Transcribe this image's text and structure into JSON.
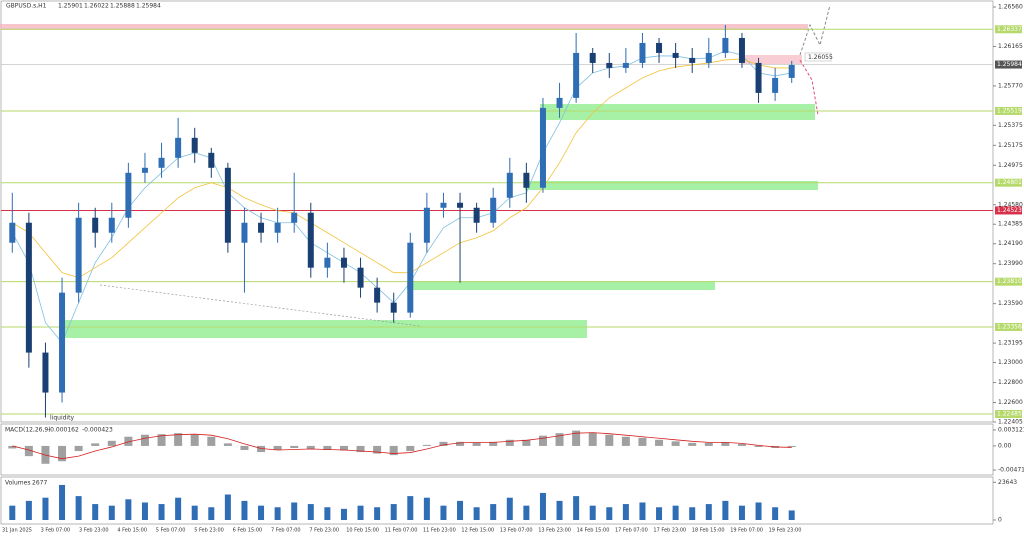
{
  "symbol": "GBPUSD.s,H1",
  "ohlc": [
    1.25901,
    1.26022,
    1.25888,
    1.25984
  ],
  "annotations": {
    "liquidity": "liquidity",
    "target": 1.26055
  },
  "chart_data": [
    {
      "type": "candlestick",
      "up_color": "#2f6db5",
      "down_color": "#1a3f73",
      "open": [
        1.242,
        1.244,
        1.231,
        1.227,
        1.237,
        1.2445,
        1.243,
        1.2445,
        1.249,
        1.2495,
        1.2505,
        1.2525,
        1.251,
        1.2495,
        1.242,
        1.244,
        1.243,
        1.244,
        1.245,
        1.2395,
        1.2405,
        1.2395,
        1.2375,
        1.236,
        1.235,
        1.242,
        1.2455,
        1.246,
        1.2455,
        1.244,
        1.2465,
        1.249,
        1.2475,
        1.2555,
        1.2565,
        1.261,
        1.26,
        1.2595,
        1.26,
        1.262,
        1.261,
        1.2605,
        1.26,
        1.261,
        1.2625,
        1.26,
        1.257,
        1.2585
      ],
      "high": [
        1.247,
        1.245,
        1.232,
        1.2385,
        1.246,
        1.2455,
        1.246,
        1.25,
        1.251,
        1.252,
        1.2545,
        1.2535,
        1.2515,
        1.25,
        1.2455,
        1.245,
        1.2455,
        1.249,
        1.246,
        1.242,
        1.2415,
        1.2405,
        1.2385,
        1.237,
        1.243,
        1.247,
        1.247,
        1.247,
        1.246,
        1.2475,
        1.2505,
        1.25,
        1.2565,
        1.258,
        1.263,
        1.2615,
        1.261,
        1.2615,
        1.263,
        1.2625,
        1.262,
        1.2615,
        1.2625,
        1.2638,
        1.263,
        1.2605,
        1.2595,
        1.2602
      ],
      "low": [
        1.241,
        1.2295,
        1.2245,
        1.226,
        1.236,
        1.2415,
        1.242,
        1.2435,
        1.248,
        1.2485,
        1.2495,
        1.25,
        1.2485,
        1.241,
        1.237,
        1.242,
        1.242,
        1.243,
        1.2385,
        1.2385,
        1.238,
        1.2365,
        1.235,
        1.234,
        1.2345,
        1.241,
        1.2445,
        1.238,
        1.243,
        1.2435,
        1.2455,
        1.246,
        1.247,
        1.2545,
        1.256,
        1.259,
        1.2585,
        1.259,
        1.2595,
        1.26,
        1.2595,
        1.259,
        1.2595,
        1.2605,
        1.2595,
        1.256,
        1.2562,
        1.258
      ],
      "close": [
        1.244,
        1.231,
        1.227,
        1.237,
        1.2445,
        1.243,
        1.2445,
        1.249,
        1.2495,
        1.2505,
        1.2525,
        1.251,
        1.2495,
        1.242,
        1.244,
        1.243,
        1.244,
        1.245,
        1.2395,
        1.2405,
        1.2395,
        1.2375,
        1.236,
        1.235,
        1.242,
        1.2455,
        1.246,
        1.2455,
        1.244,
        1.2465,
        1.249,
        1.2475,
        1.2555,
        1.2565,
        1.261,
        1.26,
        1.2595,
        1.26,
        1.262,
        1.261,
        1.2605,
        1.26,
        1.261,
        1.2625,
        1.26,
        1.257,
        1.2585,
        1.2598
      ],
      "series": [
        {
          "color": "#7fbfe0",
          "values": [
            1.243,
            1.24,
            1.234,
            1.232,
            1.236,
            1.24,
            1.2425,
            1.2455,
            1.2475,
            1.249,
            1.2505,
            1.251,
            1.2505,
            1.247,
            1.2455,
            1.2445,
            1.244,
            1.244,
            1.242,
            1.241,
            1.24,
            1.239,
            1.2375,
            1.236,
            1.238,
            1.241,
            1.2435,
            1.2445,
            1.2445,
            1.245,
            1.2465,
            1.247,
            1.251,
            1.254,
            1.2575,
            1.259,
            1.2595,
            1.2597,
            1.2605,
            1.2607,
            1.2607,
            1.2604,
            1.2605,
            1.2612,
            1.2608,
            1.259,
            1.2587,
            1.259
          ]
        },
        {
          "color": "#f2c23a",
          "values": [
            1.244,
            1.243,
            1.241,
            1.239,
            1.2385,
            1.2395,
            1.2405,
            1.242,
            1.2435,
            1.245,
            1.2465,
            1.2475,
            1.248,
            1.2475,
            1.2465,
            1.2458,
            1.2452,
            1.245,
            1.244,
            1.243,
            1.242,
            1.241,
            1.24,
            1.239,
            1.239,
            1.24,
            1.241,
            1.242,
            1.2425,
            1.2432,
            1.2445,
            1.2455,
            1.2475,
            1.25,
            1.253,
            1.255,
            1.2565,
            1.2575,
            1.2585,
            1.2592,
            1.2596,
            1.2598,
            1.26,
            1.2603,
            1.2604,
            1.2598,
            1.2595,
            1.2595
          ]
        }
      ],
      "ylim": [
        1.22405,
        1.2656
      ],
      "yticks": [
        {
          "value": 1.2656,
          "label": "1.26560"
        },
        1.26165,
        {
          "value": 1.2577,
          "label": "1.25770"
        },
        1.25375,
        1.25175,
        1.24975,
        {
          "value": 1.2458,
          "label": "1.24580"
        },
        1.24385,
        {
          "value": 1.2419,
          "label": "1.24190"
        },
        {
          "value": 1.2399,
          "label": "1.23990"
        },
        {
          "value": 1.2359,
          "label": "1.23590"
        },
        1.23195,
        {
          "value": 1.23,
          "label": "1.23000"
        },
        {
          "value": 1.228,
          "label": "1.22800"
        },
        {
          "value": 1.226,
          "label": "1.22600"
        },
        1.22405
      ],
      "levels": [
        {
          "value": 1.26337,
          "color": "#b5d96a"
        },
        {
          "value": 1.25519,
          "color": "#b5d96a"
        },
        {
          "value": 1.24801,
          "color": "#b5d96a"
        },
        {
          "value": 1.24523,
          "color": "#d9304a"
        },
        {
          "value": 1.2381,
          "label": "1.23810",
          "color": "#b5d96a"
        },
        {
          "value": 1.23356,
          "color": "#b5d96a"
        },
        {
          "value": 1.22485,
          "color": "#b5d96a"
        }
      ],
      "current": 1.25984,
      "xlabels": [
        "31 Jan 2025",
        "3 Feb 07:00",
        "3 Feb 23:00",
        "4 Feb 15:00",
        "5 Feb 07:00",
        "5 Feb 23:00",
        "6 Feb 15:00",
        "7 Feb 07:00",
        "7 Feb 23:00",
        "10 Feb 15:00",
        "11 Feb 07:00",
        "11 Feb 23:00",
        "12 Feb 15:00",
        "13 Feb 07:00",
        "13 Feb 23:00",
        "14 Feb 15:00",
        "17 Feb 07:00",
        "17 Feb 23:00",
        "18 Feb 15:00",
        "19 Feb 07:00",
        "19 Feb 23:00"
      ]
    },
    {
      "type": "macd",
      "title": "MACD(12,26,9)",
      "readings": [
        -0.000162,
        -0.000423
      ],
      "color": "#a0a0a0",
      "signal_color": "#d42020",
      "values": [
        -0.0005,
        -0.002,
        -0.0035,
        -0.003,
        -0.001,
        0.0005,
        0.001,
        0.0018,
        0.0022,
        0.0023,
        0.0025,
        0.0022,
        0.0018,
        0.0005,
        -0.0008,
        -0.0012,
        -0.0008,
        -0.0004,
        -0.0006,
        -0.0008,
        -0.0009,
        -0.0012,
        -0.0015,
        -0.0018,
        -0.001,
        0.0002,
        0.0008,
        0.0008,
        0.0006,
        0.0008,
        0.0012,
        0.0012,
        0.002,
        0.0025,
        0.003,
        0.0026,
        0.0022,
        0.0018,
        0.0016,
        0.0012,
        0.0009,
        0.0006,
        0.0006,
        0.0007,
        0.0004,
        -0.0002,
        -0.0004,
        -0.0002
      ],
      "signal": [
        0.0,
        -0.0008,
        -0.0018,
        -0.0025,
        -0.002,
        -0.001,
        -0.0002,
        0.0008,
        0.0015,
        0.002,
        0.0022,
        0.0023,
        0.0021,
        0.0014,
        0.0004,
        -0.0005,
        -0.0008,
        -0.0007,
        -0.0006,
        -0.0007,
        -0.0008,
        -0.001,
        -0.0012,
        -0.0015,
        -0.0013,
        -0.0006,
        0.0002,
        0.0006,
        0.0007,
        0.0007,
        0.0009,
        0.0011,
        0.0015,
        0.002,
        0.0025,
        0.0026,
        0.0024,
        0.0021,
        0.0018,
        0.0015,
        0.0012,
        0.0009,
        0.0007,
        0.0007,
        0.0005,
        0.0001,
        -0.0002,
        -0.0003
      ],
      "ylim": [
        -0.0055,
        0.0041
      ],
      "yticks": [
        0.003121,
        {
          "value": 0,
          "label": "0.00"
        },
        -0.004716
      ]
    },
    {
      "type": "volume",
      "title": "Volumes",
      "reading": 2677,
      "color": "#2f6db5",
      "values": [
        9000,
        12000,
        14000,
        22000,
        15000,
        10000,
        9000,
        13000,
        11000,
        10000,
        14000,
        9000,
        8000,
        16000,
        12000,
        9000,
        8000,
        11000,
        10000,
        8000,
        7000,
        9000,
        8000,
        10000,
        15000,
        14000,
        9000,
        12000,
        8000,
        10000,
        14000,
        9000,
        17000,
        12000,
        15000,
        9000,
        8000,
        10000,
        11000,
        8000,
        9000,
        8000,
        10000,
        12000,
        9000,
        11000,
        8000,
        6000
      ],
      "ylim": [
        0,
        27000
      ],
      "yticks": [
        23643,
        0
      ]
    }
  ]
}
